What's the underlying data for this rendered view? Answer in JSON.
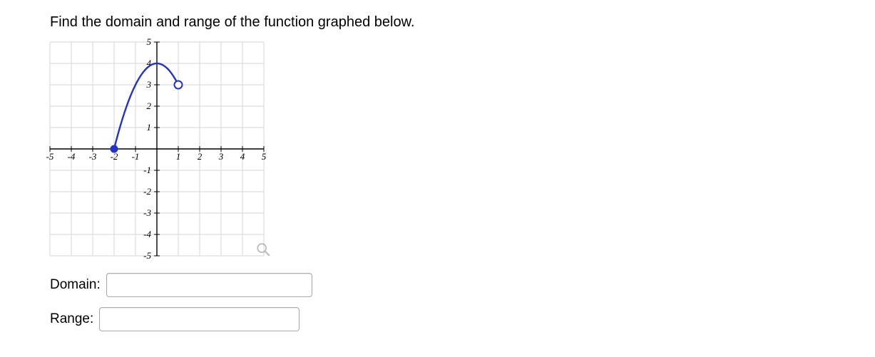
{
  "prompt": "Find the domain and range of the function graphed below.",
  "answers": {
    "domain_label": "Domain:",
    "range_label": "Range:",
    "domain_value": "",
    "range_value": ""
  },
  "chart": {
    "type": "function-curve",
    "xlim": [
      -5,
      5
    ],
    "ylim": [
      -5,
      5
    ],
    "xtick_step": 1,
    "ytick_step": 1,
    "xtick_labels": [
      "-5",
      "-4",
      "-3",
      "-2",
      "-1",
      "1",
      "2",
      "3",
      "4",
      "5"
    ],
    "ytick_labels_pos": [
      "1",
      "2",
      "3",
      "4",
      "5"
    ],
    "ytick_labels_neg": [
      "-1",
      "-2",
      "-3",
      "-4",
      "-5"
    ],
    "grid_color": "#d6d6d6",
    "axis_color": "#000000",
    "tick_label_fontsize": 13,
    "tick_label_font_style": "italic",
    "curve": {
      "color": "#2233cc",
      "line_width": 2.4,
      "start_point": {
        "x": -2,
        "y": 0,
        "type": "closed"
      },
      "end_point": {
        "x": 1,
        "y": 3,
        "type": "open"
      },
      "vertex": {
        "x": 0,
        "y": 4
      },
      "endpoint_radius_px": 5.5,
      "open_stroke_width": 2
    },
    "background_color": "#ffffff"
  },
  "icons": {
    "zoom": "magnify"
  }
}
